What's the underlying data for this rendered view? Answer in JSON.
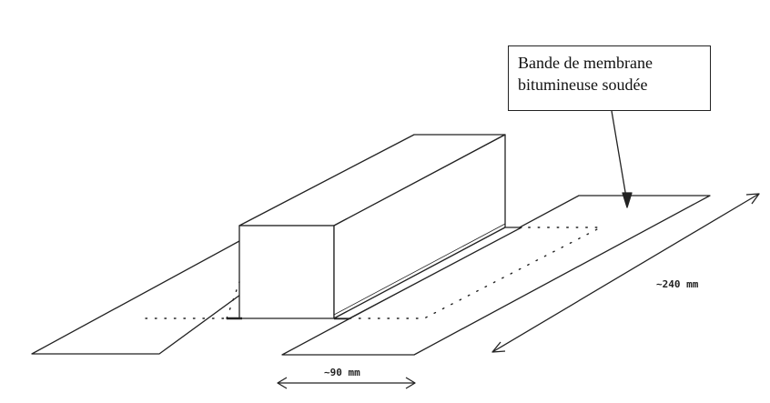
{
  "callout": {
    "line1": "Bande de membrane",
    "line2": "bitumineuse soudée"
  },
  "dimensions": {
    "length_label": "~240 mm",
    "width_label": "~90 mm"
  }
}
